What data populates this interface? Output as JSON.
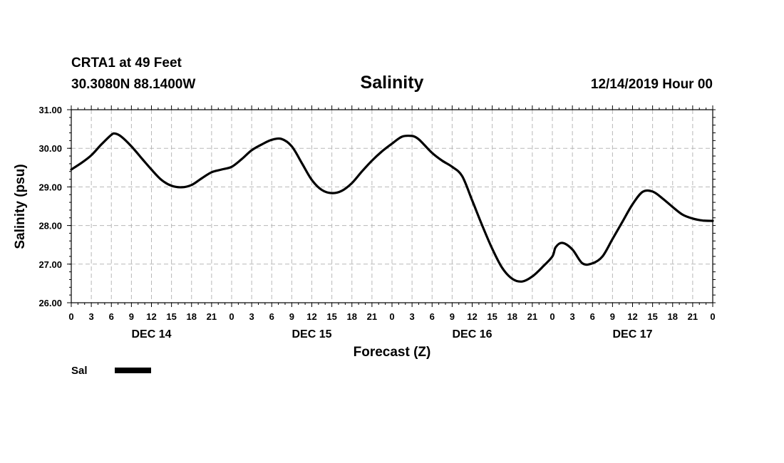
{
  "header": {
    "station": "CRTA1 at 49 Feet",
    "coords": "30.3080N 88.1400W",
    "timestamp": "12/14/2019 Hour 00"
  },
  "legend": {
    "label": "Sal",
    "color": "#000000"
  },
  "chart_data": {
    "type": "line",
    "title": "Salinity",
    "xlabel": "Forecast (Z)",
    "ylabel": "Salinity (psu)",
    "ylim": [
      26.0,
      31.0
    ],
    "xlim_hours": [
      0,
      96
    ],
    "grid": true,
    "y_ticks": [
      "31.00",
      "30.00",
      "29.00",
      "28.00",
      "27.00",
      "26.00"
    ],
    "y_tick_values": [
      31,
      30,
      29,
      28,
      27,
      26
    ],
    "x_tick_labels": [
      "0",
      "3",
      "6",
      "9",
      "12",
      "15",
      "18",
      "21",
      "0",
      "3",
      "6",
      "9",
      "12",
      "15",
      "18",
      "21",
      "0",
      "3",
      "6",
      "9",
      "12",
      "15",
      "18",
      "21",
      "0",
      "3",
      "6",
      "9",
      "12",
      "15",
      "18",
      "21",
      "0"
    ],
    "day_labels": [
      {
        "label": "DEC 14",
        "hour": 12
      },
      {
        "label": "DEC 15",
        "hour": 36
      },
      {
        "label": "DEC 16",
        "hour": 60
      },
      {
        "label": "DEC 17",
        "hour": 84
      }
    ],
    "series": [
      {
        "name": "Sal",
        "color": "#000000",
        "x": [
          0,
          1.5,
          3,
          4.5,
          6,
          6.6,
          7.5,
          9,
          10.5,
          12,
          13.5,
          15,
          16.5,
          18,
          19.5,
          21,
          22.5,
          24,
          25.5,
          27,
          28.5,
          30,
          31.5,
          33,
          34.5,
          36,
          37.5,
          39,
          40.5,
          42,
          43.5,
          45,
          46.5,
          48,
          49.5,
          51,
          51.8,
          52.5,
          54,
          55.5,
          57,
          58.5,
          60,
          61.5,
          63,
          64.5,
          66,
          67.5,
          69,
          70.5,
          72,
          72.5,
          73.5,
          75,
          76.5,
          78,
          79.5,
          81,
          82.5,
          84,
          85.5,
          87,
          88.5,
          90,
          91.5,
          93,
          94.5,
          96
        ],
        "values": [
          29.45,
          29.62,
          29.82,
          30.1,
          30.35,
          30.38,
          30.3,
          30.05,
          29.75,
          29.45,
          29.18,
          29.03,
          28.99,
          29.05,
          29.22,
          29.38,
          29.45,
          29.52,
          29.72,
          29.95,
          30.1,
          30.22,
          30.24,
          30.05,
          29.62,
          29.18,
          28.92,
          28.84,
          28.9,
          29.1,
          29.4,
          29.68,
          29.92,
          30.12,
          30.3,
          30.32,
          30.26,
          30.15,
          29.88,
          29.68,
          29.52,
          29.28,
          28.65,
          28.0,
          27.4,
          26.9,
          26.62,
          26.55,
          26.68,
          26.92,
          27.2,
          27.44,
          27.55,
          27.38,
          27.02,
          27.02,
          27.2,
          27.65,
          28.1,
          28.55,
          28.87,
          28.88,
          28.7,
          28.48,
          28.28,
          28.18,
          28.13,
          28.12
        ]
      }
    ]
  }
}
